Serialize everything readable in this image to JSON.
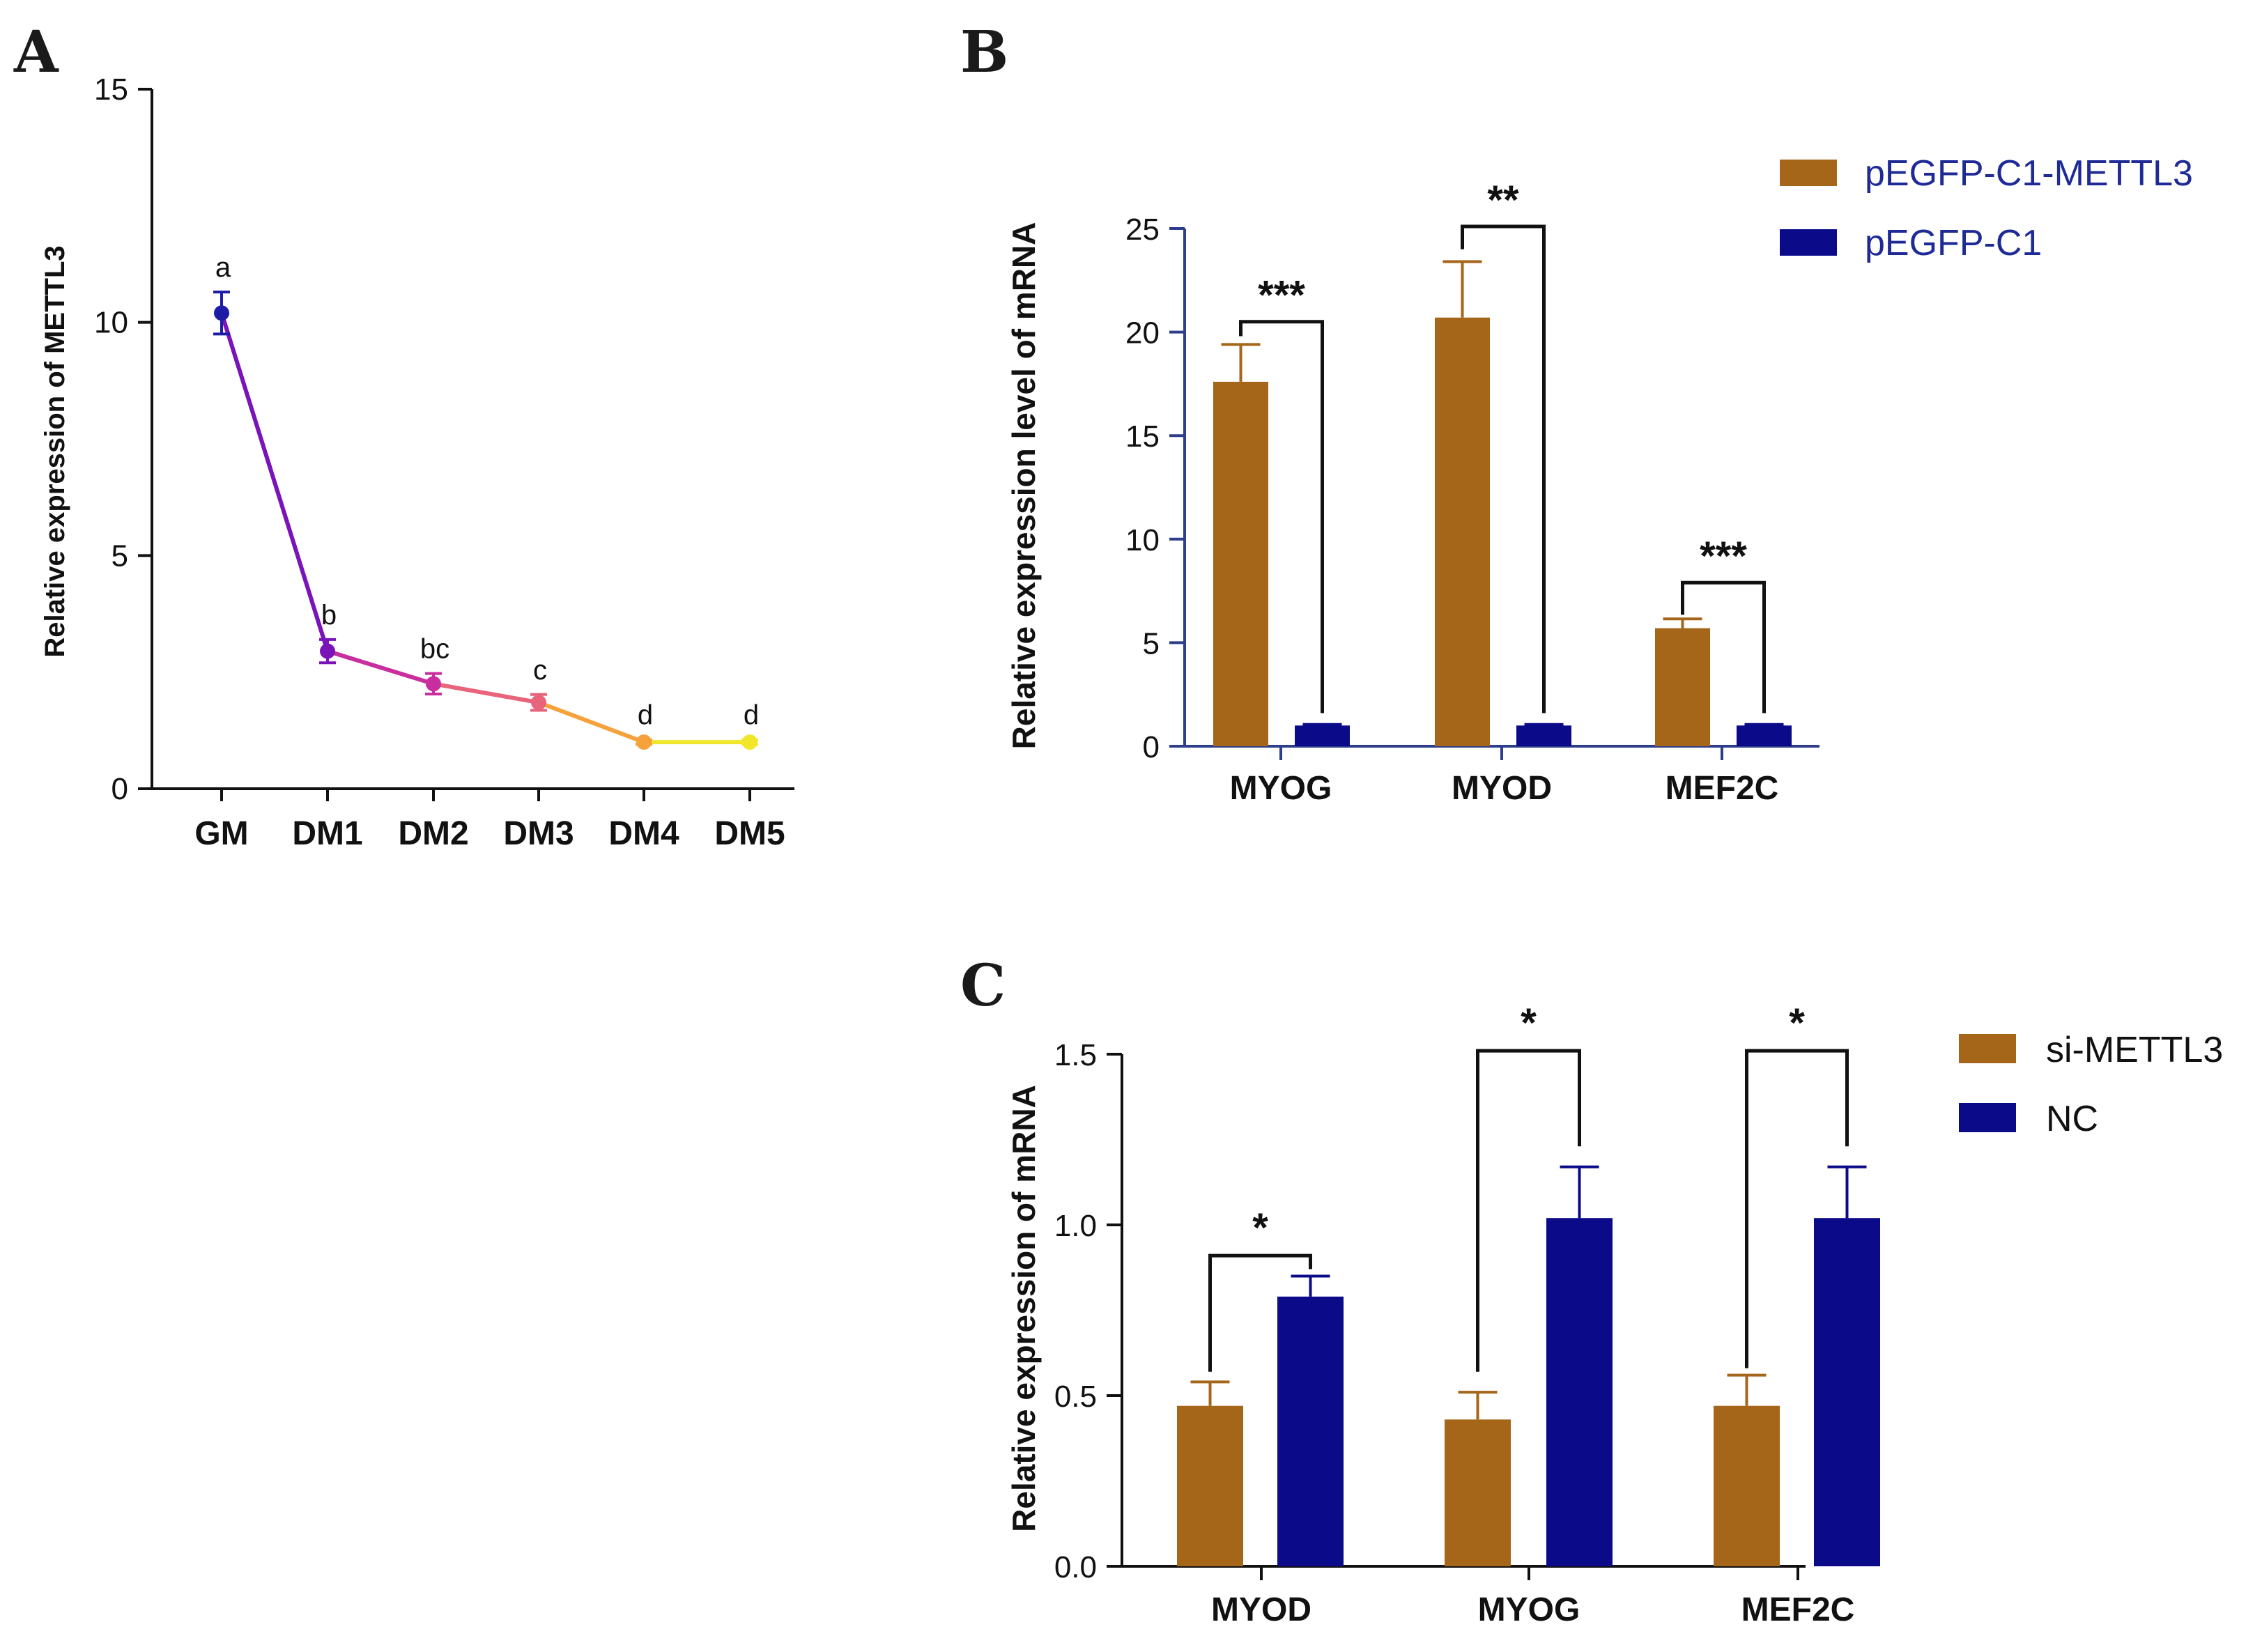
{
  "colors": {
    "treat": "#A5661A",
    "control": "#0B0B8A",
    "axisB": "#2E3E8C",
    "axisDark": "#111111",
    "legendTextB": "#1E2A96",
    "lineA": [
      "#1C1CA6",
      "#7A14B8",
      "#C92E9E",
      "#E8647A",
      "#F5A23C",
      "#F1E62A"
    ]
  },
  "chart_data": [
    {
      "panel": "A",
      "type": "line",
      "ylabel": "Relative expression of METTL3",
      "ylim": [
        0,
        15
      ],
      "yticks": [
        0,
        5,
        10,
        15
      ],
      "categories": [
        "GM",
        "DM1",
        "DM2",
        "DM3",
        "DM4",
        "DM5"
      ],
      "values": [
        10.2,
        2.95,
        2.25,
        1.85,
        1.0,
        1.0
      ],
      "errors": [
        0.45,
        0.25,
        0.22,
        0.17,
        0.05,
        0.05
      ],
      "letters": [
        "a",
        "b",
        "bc",
        "c",
        "d",
        "d"
      ]
    },
    {
      "panel": "B",
      "type": "bar",
      "ylabel": "Relative expression level of mRNA",
      "ylim": [
        0,
        25
      ],
      "yticks": [
        0,
        5,
        10,
        15,
        20,
        25
      ],
      "categories": [
        "MYOG",
        "MYOD",
        "MEF2C"
      ],
      "series": [
        {
          "name": "pEGFP-C1-METTL3",
          "values": [
            17.6,
            20.7,
            5.7
          ],
          "errors": [
            1.8,
            2.7,
            0.45
          ]
        },
        {
          "name": "pEGFP-C1",
          "values": [
            1.0,
            1.0,
            1.0
          ],
          "errors": [
            0.05,
            0.05,
            0.05
          ]
        }
      ],
      "significance": [
        "***",
        "**",
        "***"
      ]
    },
    {
      "panel": "C",
      "type": "bar",
      "ylabel": "Relative expression of mRNA",
      "ylim": [
        0,
        1.5
      ],
      "yticks": [
        "0.0",
        "0.5",
        "1.0",
        "1.5"
      ],
      "categories": [
        "MYOD",
        "MYOG",
        "MEF2C"
      ],
      "series": [
        {
          "name": "si-METTL3",
          "values": [
            0.47,
            0.43,
            0.47
          ],
          "errors": [
            0.07,
            0.08,
            0.09
          ]
        },
        {
          "name": "NC",
          "values": [
            0.79,
            1.02,
            1.02
          ],
          "errors": [
            0.06,
            0.15,
            0.15
          ]
        }
      ],
      "significance": [
        "*",
        "*",
        "*"
      ]
    }
  ]
}
